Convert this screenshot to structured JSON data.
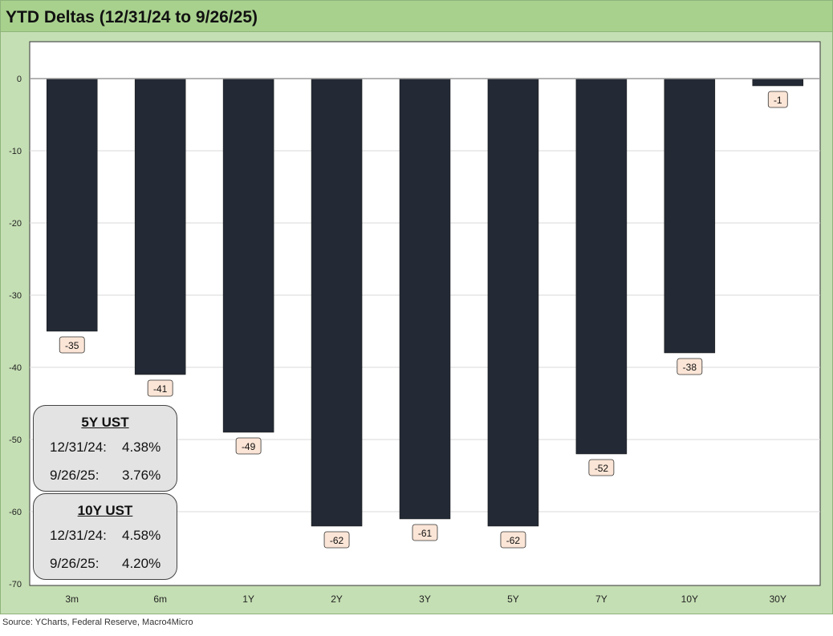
{
  "title": "YTD Deltas (12/31/24 to 9/26/25)",
  "source": "Source: YCharts, Federal Reserve, Macro4Micro",
  "colors": {
    "bar": "#232a35",
    "label_bg": "#fbe5d6",
    "frame": "#c5dfb4",
    "title_bar": "#a9d18e"
  },
  "chart_data": {
    "type": "bar",
    "categories": [
      "3m",
      "6m",
      "1Y",
      "2Y",
      "3Y",
      "5Y",
      "7Y",
      "10Y",
      "30Y"
    ],
    "values": [
      -35,
      -41,
      -49,
      -62,
      -61,
      -62,
      -52,
      -38,
      -1
    ],
    "data_labels": [
      "-35",
      "-41",
      "-49",
      "-62",
      "-61",
      "-62",
      "-52",
      "-38",
      "-1"
    ],
    "title": "YTD Deltas (12/31/24 to 9/26/25)",
    "xlabel": "",
    "ylabel": "",
    "ylim": [
      -70,
      0
    ],
    "yticks": [
      0,
      -10,
      -20,
      -30,
      -40,
      -50,
      -60,
      -70
    ],
    "grid": true,
    "legend": "none"
  },
  "info_boxes": [
    {
      "heading": "5Y UST",
      "rows": [
        {
          "date": "12/31/24:",
          "value": "4.38%"
        },
        {
          "date": "9/26/25:",
          "value": "3.76%"
        }
      ]
    },
    {
      "heading": "10Y UST",
      "rows": [
        {
          "date": "12/31/24:",
          "value": "4.58%"
        },
        {
          "date": "9/26/25:",
          "value": "4.20%"
        }
      ]
    }
  ]
}
